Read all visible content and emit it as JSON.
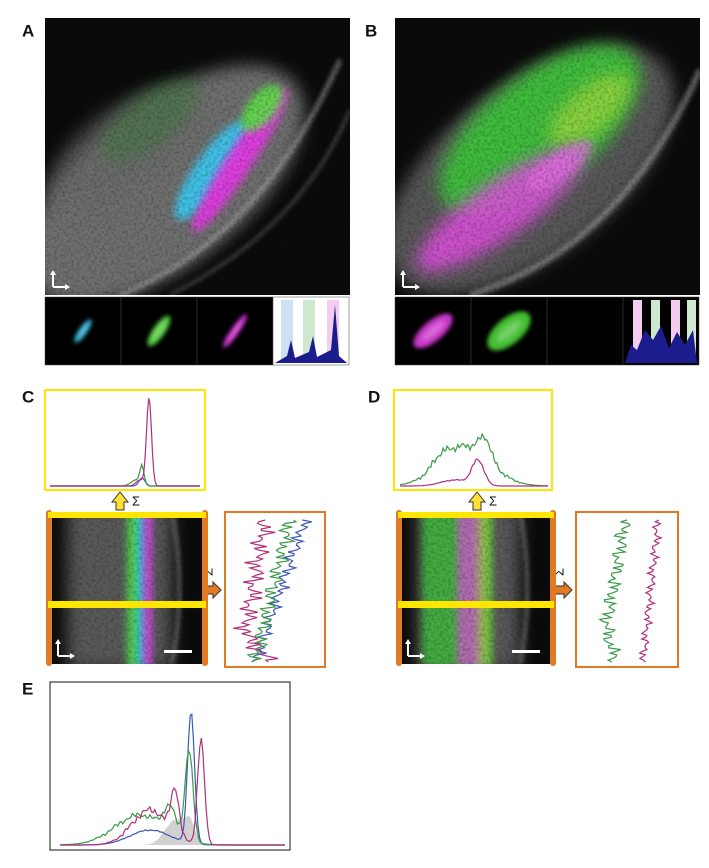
{
  "panels": [
    {
      "label": "A"
    },
    {
      "label": "B"
    },
    {
      "label": "C"
    },
    {
      "label": "D"
    },
    {
      "label": "E"
    }
  ],
  "sigma": [
    "Σ",
    "Σ",
    "Σ",
    "Σ"
  ]
}
